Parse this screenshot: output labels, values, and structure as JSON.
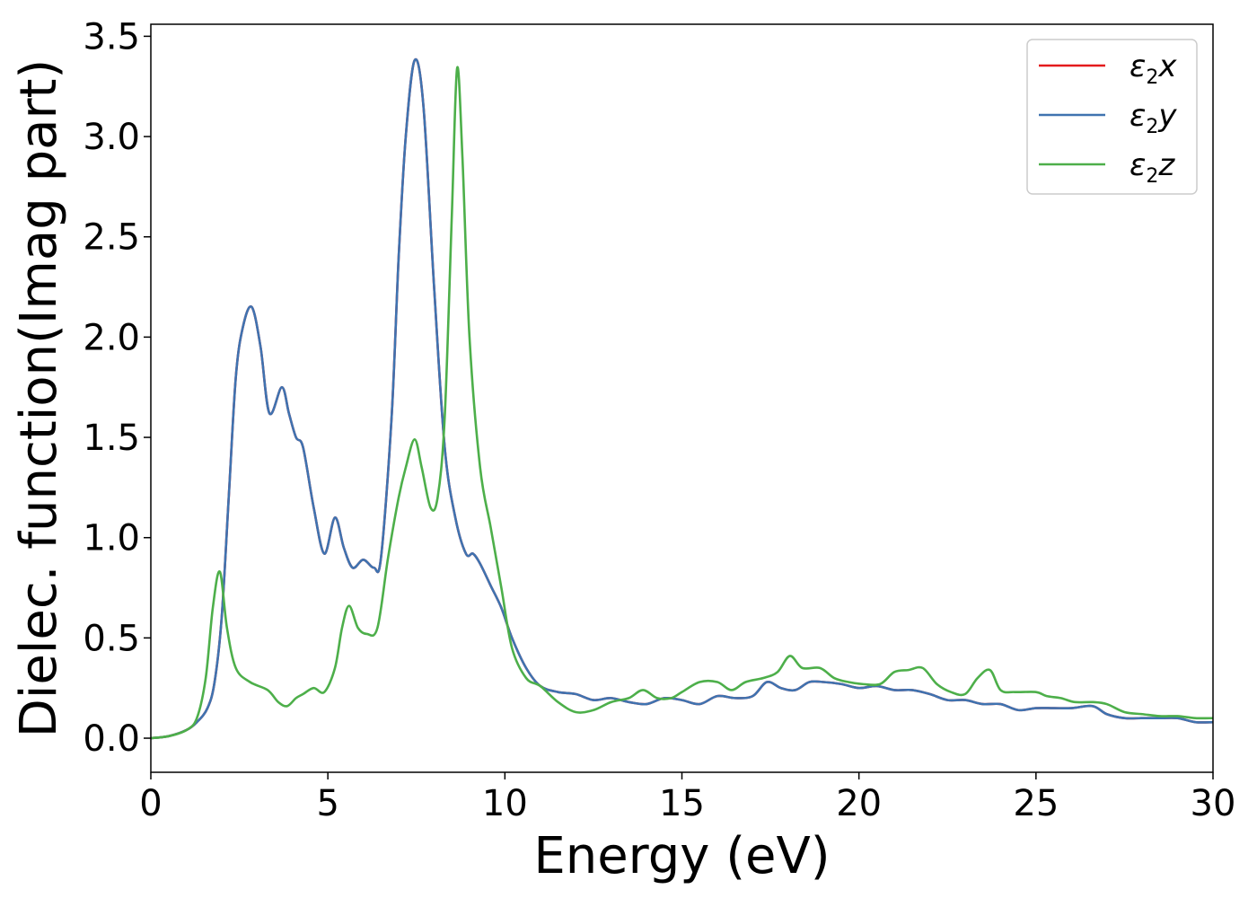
{
  "chart_data": {
    "type": "line",
    "xlabel": "Energy (eV)",
    "ylabel": "Dielec. function(Imag part)",
    "xlim": [
      0,
      30
    ],
    "ylim": [
      -0.17,
      3.56
    ],
    "xticks": [
      0,
      5,
      10,
      15,
      20,
      25,
      30
    ],
    "xtick_labels": [
      "0",
      "5",
      "10",
      "15",
      "20",
      "25",
      "30"
    ],
    "yticks": [
      0.0,
      0.5,
      1.0,
      1.5,
      2.0,
      2.5,
      3.0,
      3.5
    ],
    "ytick_labels": [
      "0.0",
      "0.5",
      "1.0",
      "1.5",
      "2.0",
      "2.5",
      "3.0",
      "3.5"
    ],
    "grid": false,
    "legend_position": "top-right",
    "series": [
      {
        "name": "ε2x",
        "legend_base": "ε",
        "legend_sub": "2",
        "legend_var": "x",
        "color": "#e41a1c",
        "x": [
          0,
          0.5,
          1.0,
          1.3,
          1.6,
          1.8,
          2.0,
          2.2,
          2.4,
          2.6,
          2.85,
          3.1,
          3.35,
          3.7,
          3.9,
          4.1,
          4.3,
          4.6,
          4.9,
          5.2,
          5.45,
          5.7,
          6.0,
          6.3,
          6.5,
          6.8,
          7.0,
          7.2,
          7.45,
          7.7,
          8.0,
          8.3,
          8.6,
          8.9,
          9.1,
          9.3,
          9.6,
          9.9,
          10.2,
          10.6,
          11.0,
          11.5,
          12.0,
          12.5,
          13.0,
          13.5,
          14.0,
          14.5,
          15.0,
          15.5,
          16.0,
          16.5,
          17.0,
          17.4,
          17.8,
          18.2,
          18.6,
          19.0,
          19.5,
          20.0,
          20.5,
          21.0,
          21.5,
          22.0,
          22.5,
          23.0,
          23.5,
          24.0,
          24.5,
          25.0,
          25.5,
          26.0,
          26.6,
          27.0,
          27.5,
          28.0,
          28.5,
          29.0,
          29.5,
          30.0
        ],
        "y": [
          0.0,
          0.01,
          0.04,
          0.08,
          0.15,
          0.28,
          0.6,
          1.2,
          1.8,
          2.05,
          2.15,
          1.95,
          1.62,
          1.75,
          1.62,
          1.5,
          1.45,
          1.15,
          0.92,
          1.1,
          0.95,
          0.85,
          0.89,
          0.85,
          0.9,
          1.6,
          2.4,
          3.0,
          3.38,
          3.15,
          2.25,
          1.45,
          1.1,
          0.92,
          0.92,
          0.87,
          0.76,
          0.65,
          0.5,
          0.35,
          0.26,
          0.23,
          0.22,
          0.19,
          0.2,
          0.18,
          0.17,
          0.2,
          0.19,
          0.17,
          0.21,
          0.2,
          0.21,
          0.28,
          0.25,
          0.24,
          0.28,
          0.28,
          0.27,
          0.25,
          0.26,
          0.24,
          0.24,
          0.22,
          0.19,
          0.19,
          0.17,
          0.17,
          0.14,
          0.15,
          0.15,
          0.15,
          0.16,
          0.12,
          0.1,
          0.1,
          0.1,
          0.1,
          0.08,
          0.08
        ]
      },
      {
        "name": "ε2y",
        "legend_base": "ε",
        "legend_sub": "2",
        "legend_var": "y",
        "color": "#3f73b0",
        "x": [
          0,
          0.5,
          1.0,
          1.3,
          1.6,
          1.8,
          2.0,
          2.2,
          2.4,
          2.6,
          2.85,
          3.1,
          3.35,
          3.7,
          3.9,
          4.1,
          4.3,
          4.6,
          4.9,
          5.2,
          5.45,
          5.7,
          6.0,
          6.3,
          6.5,
          6.8,
          7.0,
          7.2,
          7.45,
          7.7,
          8.0,
          8.3,
          8.6,
          8.9,
          9.1,
          9.3,
          9.6,
          9.9,
          10.2,
          10.6,
          11.0,
          11.5,
          12.0,
          12.5,
          13.0,
          13.5,
          14.0,
          14.5,
          15.0,
          15.5,
          16.0,
          16.5,
          17.0,
          17.4,
          17.8,
          18.2,
          18.6,
          19.0,
          19.5,
          20.0,
          20.5,
          21.0,
          21.5,
          22.0,
          22.5,
          23.0,
          23.5,
          24.0,
          24.5,
          25.0,
          25.5,
          26.0,
          26.6,
          27.0,
          27.5,
          28.0,
          28.5,
          29.0,
          29.5,
          30.0
        ],
        "y": [
          0.0,
          0.01,
          0.04,
          0.08,
          0.15,
          0.28,
          0.6,
          1.2,
          1.8,
          2.05,
          2.15,
          1.95,
          1.62,
          1.75,
          1.62,
          1.5,
          1.45,
          1.15,
          0.92,
          1.1,
          0.95,
          0.85,
          0.89,
          0.85,
          0.9,
          1.6,
          2.4,
          3.0,
          3.38,
          3.15,
          2.25,
          1.45,
          1.1,
          0.92,
          0.92,
          0.87,
          0.76,
          0.65,
          0.5,
          0.35,
          0.26,
          0.23,
          0.22,
          0.19,
          0.2,
          0.18,
          0.17,
          0.2,
          0.19,
          0.17,
          0.21,
          0.2,
          0.21,
          0.28,
          0.25,
          0.24,
          0.28,
          0.28,
          0.27,
          0.25,
          0.26,
          0.24,
          0.24,
          0.22,
          0.19,
          0.19,
          0.17,
          0.17,
          0.14,
          0.15,
          0.15,
          0.15,
          0.16,
          0.12,
          0.1,
          0.1,
          0.1,
          0.1,
          0.08,
          0.08
        ]
      },
      {
        "name": "ε2z",
        "legend_base": "ε",
        "legend_sub": "2",
        "legend_var": "z",
        "color": "#4daf4a",
        "x": [
          0,
          0.5,
          1.0,
          1.3,
          1.55,
          1.75,
          1.95,
          2.15,
          2.4,
          2.8,
          3.3,
          3.6,
          3.85,
          4.1,
          4.3,
          4.6,
          4.9,
          5.2,
          5.4,
          5.6,
          5.85,
          6.1,
          6.4,
          6.7,
          7.0,
          7.2,
          7.45,
          7.65,
          7.9,
          8.1,
          8.3,
          8.5,
          8.65,
          8.8,
          9.0,
          9.3,
          9.6,
          9.9,
          10.2,
          10.6,
          11.0,
          11.5,
          12.0,
          12.5,
          13.0,
          13.5,
          13.9,
          14.3,
          14.7,
          15.0,
          15.5,
          16.0,
          16.4,
          16.8,
          17.3,
          17.7,
          18.05,
          18.4,
          18.9,
          19.3,
          19.7,
          20.1,
          20.6,
          21.0,
          21.4,
          21.8,
          22.2,
          22.6,
          23.0,
          23.35,
          23.7,
          24.0,
          24.4,
          25.0,
          25.3,
          25.7,
          26.1,
          26.6,
          27.0,
          27.5,
          28.0,
          28.5,
          29.0,
          29.5,
          30.0
        ],
        "y": [
          0.0,
          0.01,
          0.04,
          0.1,
          0.3,
          0.65,
          0.83,
          0.55,
          0.35,
          0.28,
          0.24,
          0.18,
          0.16,
          0.2,
          0.22,
          0.25,
          0.23,
          0.35,
          0.55,
          0.66,
          0.55,
          0.52,
          0.55,
          0.9,
          1.2,
          1.35,
          1.49,
          1.35,
          1.15,
          1.2,
          1.6,
          2.6,
          3.34,
          2.9,
          2.0,
          1.35,
          1.05,
          0.75,
          0.45,
          0.3,
          0.26,
          0.18,
          0.13,
          0.14,
          0.18,
          0.2,
          0.24,
          0.2,
          0.2,
          0.23,
          0.28,
          0.28,
          0.24,
          0.28,
          0.3,
          0.33,
          0.41,
          0.35,
          0.35,
          0.3,
          0.28,
          0.27,
          0.27,
          0.33,
          0.34,
          0.35,
          0.27,
          0.23,
          0.22,
          0.3,
          0.34,
          0.24,
          0.23,
          0.23,
          0.21,
          0.2,
          0.18,
          0.18,
          0.17,
          0.13,
          0.12,
          0.11,
          0.11,
          0.1,
          0.1
        ]
      }
    ]
  }
}
